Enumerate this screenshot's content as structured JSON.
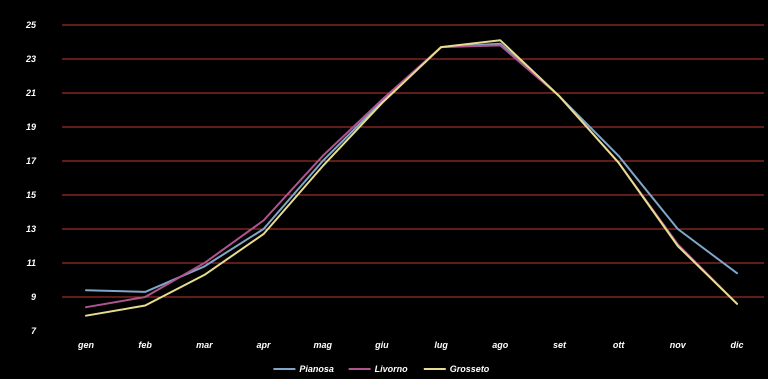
{
  "chart_data": {
    "type": "line",
    "categories": [
      "gen",
      "feb",
      "mar",
      "apr",
      "mag",
      "giu",
      "lug",
      "ago",
      "set",
      "ott",
      "nov",
      "dic"
    ],
    "series": [
      {
        "name": "Pianosa",
        "color": "#7fa7c9",
        "values": [
          9.4,
          9.3,
          10.8,
          13.0,
          17.0,
          20.5,
          23.7,
          23.9,
          20.8,
          17.3,
          13.0,
          10.4
        ]
      },
      {
        "name": "Livorno",
        "color": "#b0548f",
        "values": [
          8.4,
          9.0,
          11.0,
          13.5,
          17.3,
          20.6,
          23.7,
          23.8,
          20.8,
          16.9,
          12.1,
          8.6
        ]
      },
      {
        "name": "Grosseto",
        "color": "#e6dd8e",
        "values": [
          7.9,
          8.5,
          10.3,
          12.7,
          16.7,
          20.4,
          23.7,
          24.1,
          20.8,
          16.9,
          12.0,
          8.6
        ]
      }
    ],
    "y_ticks": [
      "7",
      "9",
      "11",
      "13",
      "15",
      "17",
      "19",
      "21",
      "23",
      "25"
    ],
    "ylim": [
      7,
      25
    ],
    "grid": true,
    "grid_color": "#c0392b",
    "legend_position": "bottom-center",
    "title": "",
    "xlabel": "",
    "ylabel": ""
  }
}
